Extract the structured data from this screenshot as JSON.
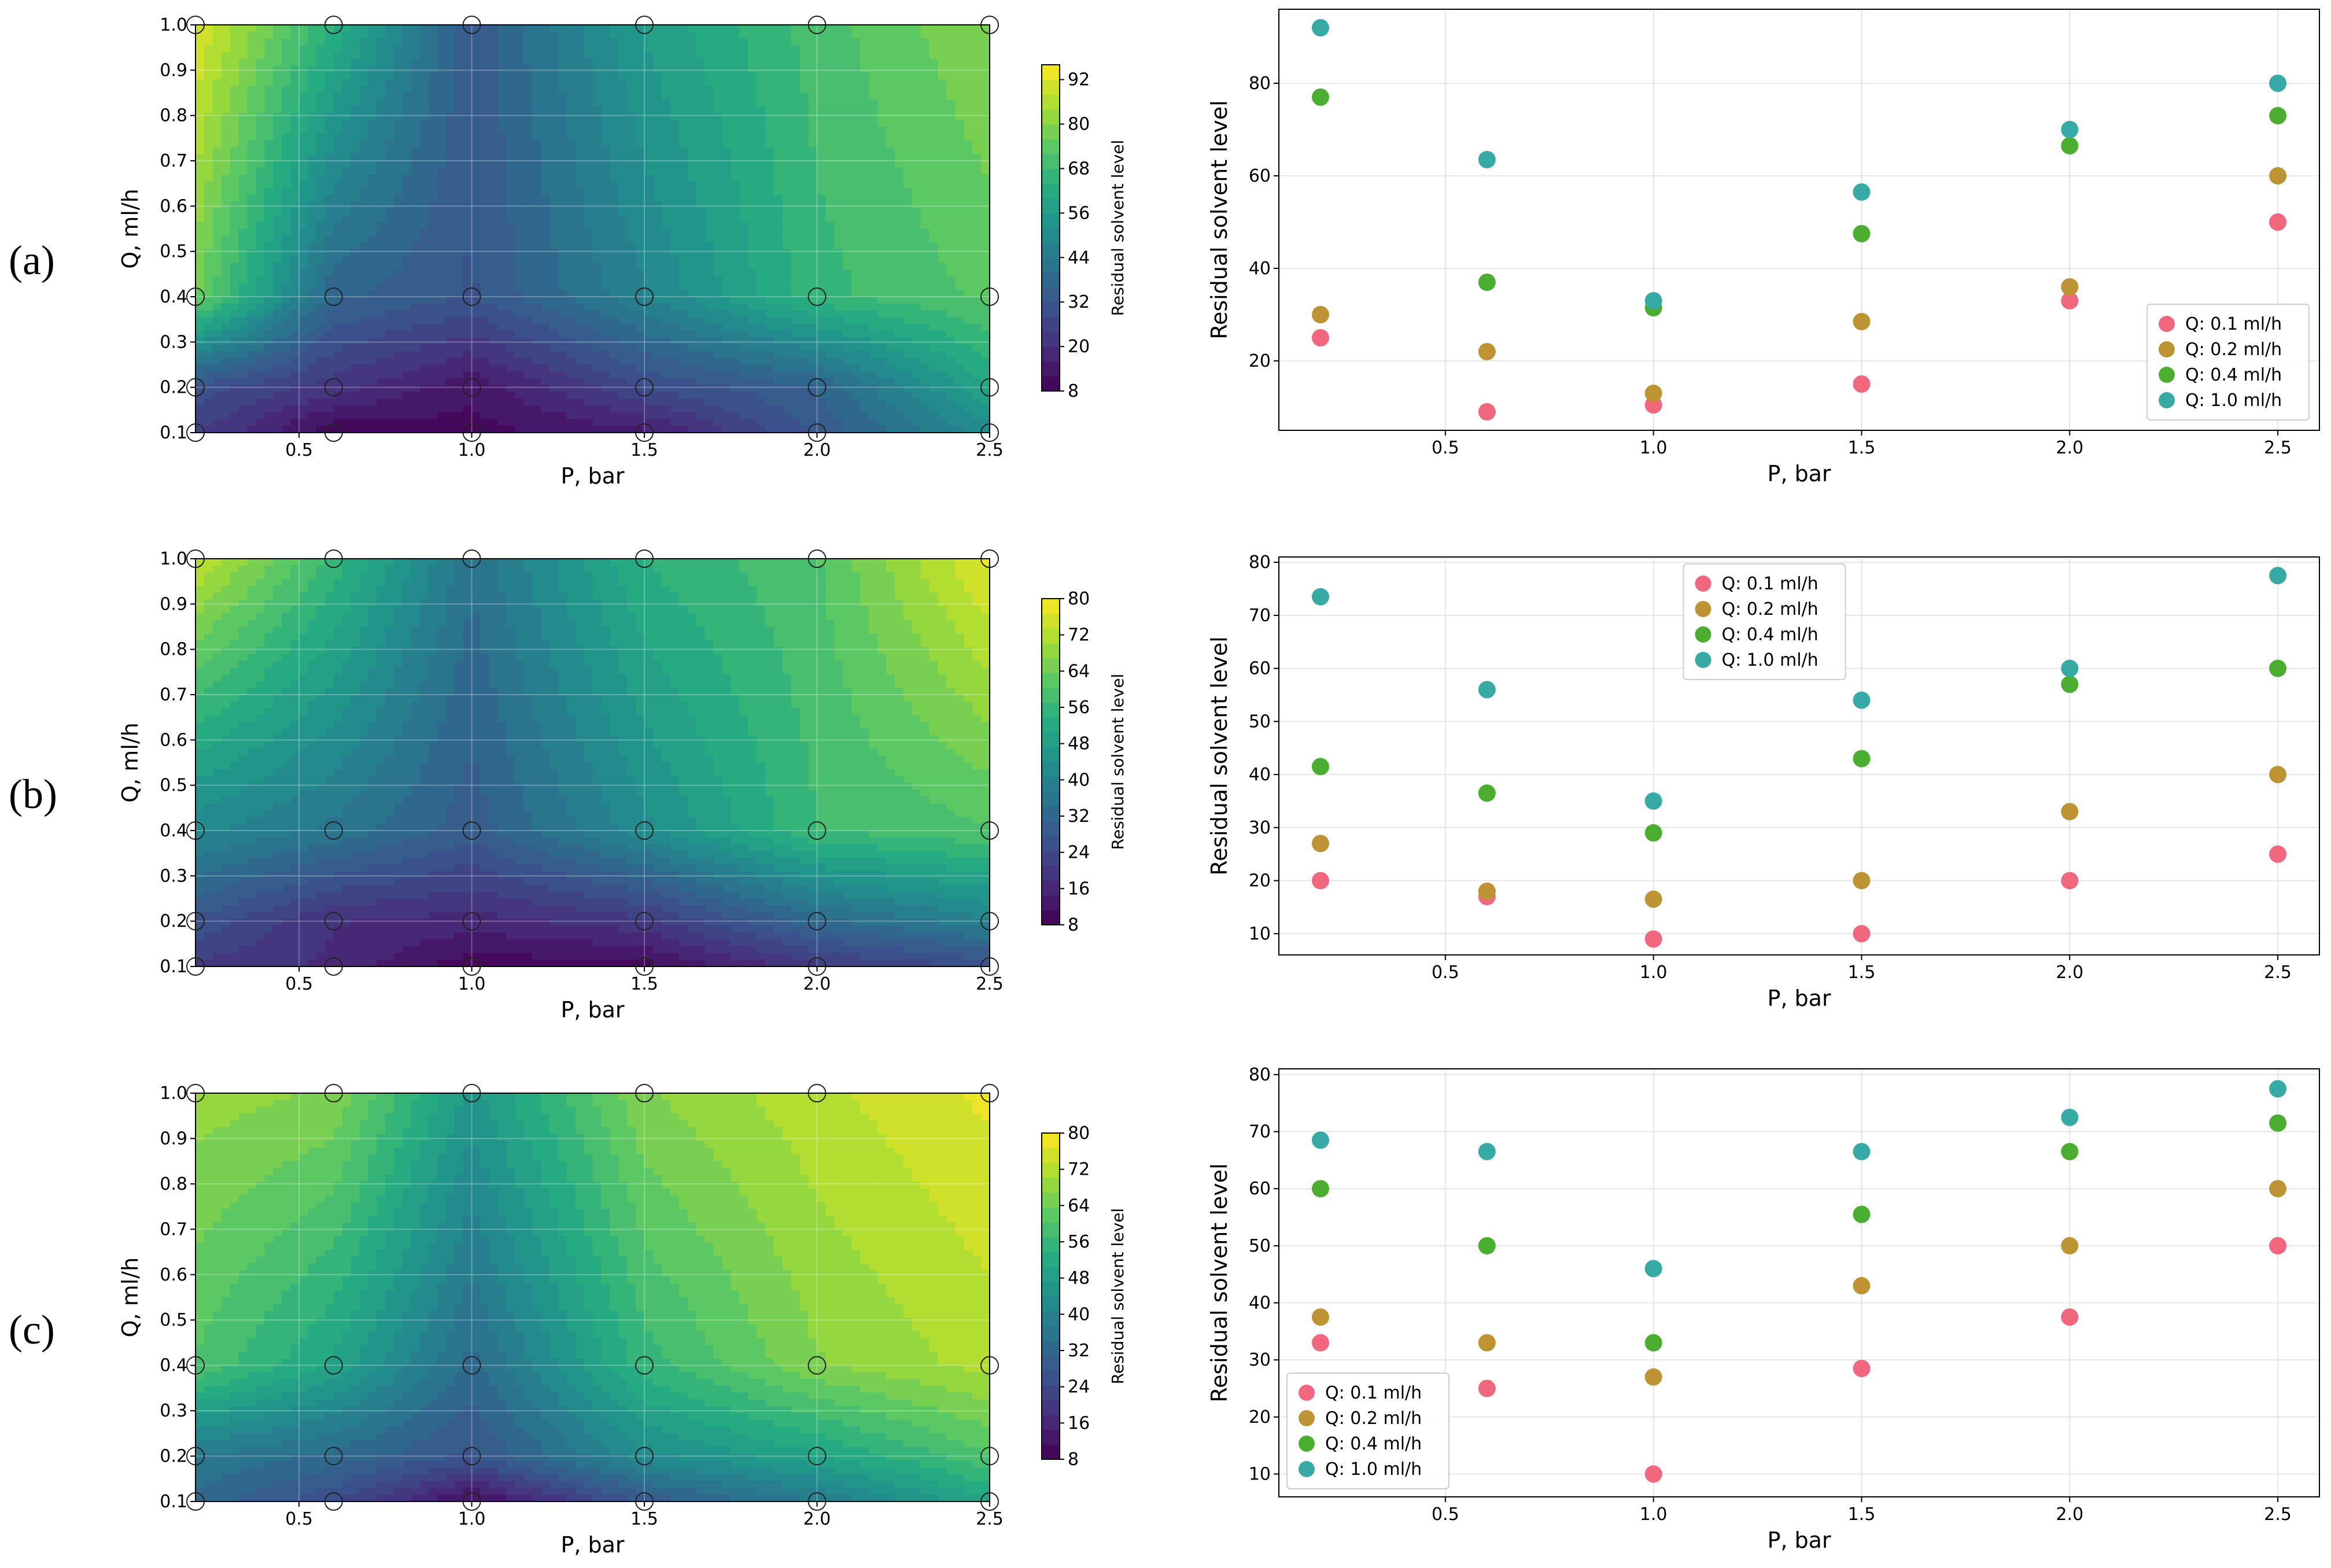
{
  "panel_labels": [
    "(a)",
    "(b)",
    "(c)"
  ],
  "chart_data": [
    {
      "panel": "(a)",
      "type": "heatmap",
      "xlabel": "P, bar",
      "ylabel": "Q, ml/h",
      "colorbar_label": "Residual solvent level",
      "x_ticks": [
        "0.5",
        "1.0",
        "1.5",
        "2.0",
        "2.5"
      ],
      "y_ticks": [
        "0.1",
        "0.2",
        "0.3",
        "0.4",
        "0.5",
        "0.6",
        "0.7",
        "0.8",
        "0.9",
        "1.0"
      ],
      "colorbar_ticks": [
        "8",
        "20",
        "32",
        "44",
        "56",
        "68",
        "80",
        "92"
      ],
      "xlim": [
        0.2,
        2.5
      ],
      "ylim": [
        0.1,
        1.0
      ],
      "zlim": [
        8,
        96
      ],
      "P": [
        0.2,
        0.6,
        1.0,
        1.5,
        2.0,
        2.5
      ],
      "Q": [
        0.1,
        0.2,
        0.4,
        1.0
      ],
      "Z": [
        [
          25,
          9,
          10.5,
          15,
          33,
          50
        ],
        [
          30,
          22,
          13,
          28.5,
          36,
          60
        ],
        [
          77,
          37,
          31.5,
          47.5,
          66.5,
          73
        ],
        [
          92,
          63.5,
          33,
          56.5,
          70,
          80
        ]
      ]
    },
    {
      "panel": "(a)",
      "type": "scatter",
      "xlabel": "P, bar",
      "ylabel": "Residual solvent level",
      "x_ticks": [
        "0.5",
        "1.0",
        "1.5",
        "2.0",
        "2.5"
      ],
      "y_ticks": [
        "20",
        "40",
        "60",
        "80"
      ],
      "xlim": [
        0.1,
        2.6
      ],
      "ylim": [
        5,
        96
      ],
      "legend_position": "bottom-right",
      "x": [
        0.2,
        0.6,
        1.0,
        1.5,
        2.0,
        2.5
      ],
      "series": [
        {
          "name": "Q: 0.1 ml/h",
          "color": "#f0677e",
          "values": [
            25,
            9,
            10.5,
            15,
            33,
            50
          ]
        },
        {
          "name": "Q: 0.2 ml/h",
          "color": "#be9333",
          "values": [
            30,
            22,
            13,
            28.5,
            36,
            60
          ]
        },
        {
          "name": "Q: 0.4 ml/h",
          "color": "#4cae30",
          "values": [
            77,
            37,
            31.5,
            47.5,
            66.5,
            73
          ]
        },
        {
          "name": "Q: 1.0 ml/h",
          "color": "#37aaa6",
          "values": [
            92,
            63.5,
            33,
            56.5,
            70,
            80
          ]
        }
      ]
    },
    {
      "panel": "(b)",
      "type": "heatmap",
      "xlabel": "P, bar",
      "ylabel": "Q, ml/h",
      "colorbar_label": "Residual solvent level",
      "x_ticks": [
        "0.5",
        "1.0",
        "1.5",
        "2.0",
        "2.5"
      ],
      "y_ticks": [
        "0.1",
        "0.2",
        "0.3",
        "0.4",
        "0.5",
        "0.6",
        "0.7",
        "0.8",
        "0.9",
        "1.0"
      ],
      "colorbar_ticks": [
        "8",
        "16",
        "24",
        "32",
        "40",
        "48",
        "56",
        "64",
        "72",
        "80"
      ],
      "xlim": [
        0.2,
        2.5
      ],
      "ylim": [
        0.1,
        1.0
      ],
      "zlim": [
        8,
        80
      ],
      "P": [
        0.2,
        0.6,
        1.0,
        1.5,
        2.0,
        2.5
      ],
      "Q": [
        0.1,
        0.2,
        0.4,
        1.0
      ],
      "Z": [
        [
          20,
          17,
          9,
          10,
          20,
          25
        ],
        [
          27,
          18,
          16.5,
          20,
          33,
          40
        ],
        [
          41.5,
          36.5,
          29,
          43,
          57,
          60
        ],
        [
          73.5,
          56,
          35,
          54,
          60,
          77.5
        ]
      ]
    },
    {
      "panel": "(b)",
      "type": "scatter",
      "xlabel": "P, bar",
      "ylabel": "Residual solvent level",
      "x_ticks": [
        "0.5",
        "1.0",
        "1.5",
        "2.0",
        "2.5"
      ],
      "y_ticks": [
        "10",
        "20",
        "30",
        "40",
        "50",
        "60",
        "70",
        "80"
      ],
      "xlim": [
        0.1,
        2.6
      ],
      "ylim": [
        6,
        81
      ],
      "legend_position": "top-center",
      "x": [
        0.2,
        0.6,
        1.0,
        1.5,
        2.0,
        2.5
      ],
      "series": [
        {
          "name": "Q: 0.1 ml/h",
          "color": "#f0677e",
          "values": [
            20,
            17,
            9,
            10,
            20,
            25
          ]
        },
        {
          "name": "Q: 0.2 ml/h",
          "color": "#be9333",
          "values": [
            27,
            18,
            16.5,
            20,
            33,
            40
          ]
        },
        {
          "name": "Q: 0.4 ml/h",
          "color": "#4cae30",
          "values": [
            41.5,
            36.5,
            29,
            43,
            57,
            60
          ]
        },
        {
          "name": "Q: 1.0 ml/h",
          "color": "#37aaa6",
          "values": [
            73.5,
            56,
            35,
            54,
            60,
            77.5
          ]
        }
      ]
    },
    {
      "panel": "(c)",
      "type": "heatmap",
      "xlabel": "P, bar",
      "ylabel": "Q, ml/h",
      "colorbar_label": "Residual solvent level",
      "x_ticks": [
        "0.5",
        "1.0",
        "1.5",
        "2.0",
        "2.5"
      ],
      "y_ticks": [
        "0.1",
        "0.2",
        "0.3",
        "0.4",
        "0.5",
        "0.6",
        "0.7",
        "0.8",
        "0.9",
        "1.0"
      ],
      "colorbar_ticks": [
        "8",
        "16",
        "24",
        "32",
        "40",
        "48",
        "56",
        "64",
        "72",
        "80"
      ],
      "xlim": [
        0.2,
        2.5
      ],
      "ylim": [
        0.1,
        1.0
      ],
      "zlim": [
        8,
        80
      ],
      "P": [
        0.2,
        0.6,
        1.0,
        1.5,
        2.0,
        2.5
      ],
      "Q": [
        0.1,
        0.2,
        0.4,
        1.0
      ],
      "Z": [
        [
          33,
          25,
          10,
          28.5,
          37.5,
          50
        ],
        [
          37.5,
          33,
          27,
          43,
          50,
          60
        ],
        [
          60,
          50,
          33,
          55.5,
          66.5,
          71.5
        ],
        [
          68.5,
          66.5,
          46,
          66.5,
          72.5,
          77.5
        ]
      ]
    },
    {
      "panel": "(c)",
      "type": "scatter",
      "xlabel": "P, bar",
      "ylabel": "Residual solvent level",
      "x_ticks": [
        "0.5",
        "1.0",
        "1.5",
        "2.0",
        "2.5"
      ],
      "y_ticks": [
        "10",
        "20",
        "30",
        "40",
        "50",
        "60",
        "70",
        "80"
      ],
      "xlim": [
        0.1,
        2.6
      ],
      "ylim": [
        6,
        81
      ],
      "legend_position": "bottom-left",
      "x": [
        0.2,
        0.6,
        1.0,
        1.5,
        2.0,
        2.5
      ],
      "series": [
        {
          "name": "Q: 0.1 ml/h",
          "color": "#f0677e",
          "values": [
            33,
            25,
            10,
            28.5,
            37.5,
            50
          ]
        },
        {
          "name": "Q: 0.2 ml/h",
          "color": "#be9333",
          "values": [
            37.5,
            33,
            27,
            43,
            50,
            60
          ]
        },
        {
          "name": "Q: 0.4 ml/h",
          "color": "#4cae30",
          "values": [
            60,
            50,
            33,
            55.5,
            66.5,
            71.5
          ]
        },
        {
          "name": "Q: 1.0 ml/h",
          "color": "#37aaa6",
          "values": [
            68.5,
            66.5,
            46,
            66.5,
            72.5,
            77.5
          ]
        }
      ]
    }
  ]
}
